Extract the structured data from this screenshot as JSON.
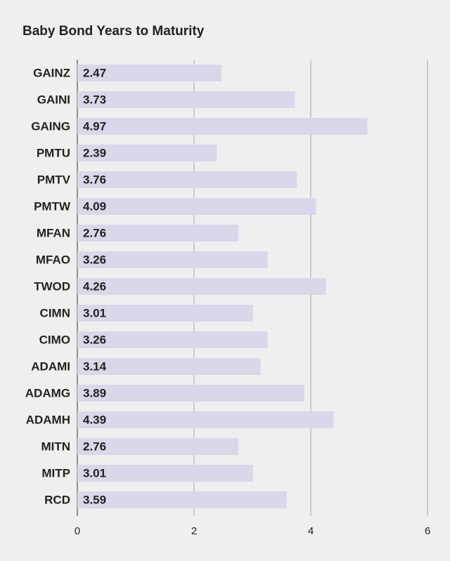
{
  "chart_data": {
    "type": "hbar",
    "title": "Baby Bond Years to Maturity",
    "categories": [
      "GAINZ",
      "GAINI",
      "GAING",
      "PMTU",
      "PMTV",
      "PMTW",
      "MFAN",
      "MFAO",
      "TWOD",
      "CIMN",
      "CIMO",
      "ADAMI",
      "ADAMG",
      "ADAMH",
      "MITN",
      "MITP",
      "RCD"
    ],
    "values": [
      2.47,
      3.73,
      4.97,
      2.39,
      3.76,
      4.09,
      2.76,
      3.26,
      4.26,
      3.01,
      3.26,
      3.14,
      3.89,
      4.39,
      2.76,
      3.01,
      3.59
    ],
    "color": "#dcd6ea",
    "xlim": [
      0,
      6
    ],
    "xticks": [
      0,
      2,
      4,
      6
    ],
    "grid": true
  }
}
